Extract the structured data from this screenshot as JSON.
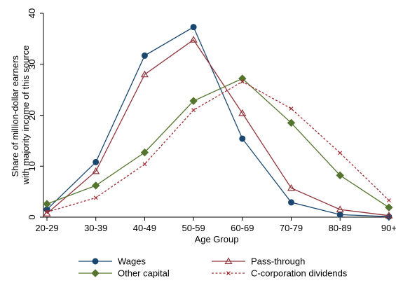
{
  "chart_data": {
    "type": "line",
    "categories": [
      "20-29",
      "30-39",
      "40-49",
      "50-59",
      "60-69",
      "70-79",
      "80-89",
      "90+"
    ],
    "xlabel": "Age Group",
    "ylabel_lines": [
      "Share of million-dollar earners",
      "with majority income of this source"
    ],
    "ylim": [
      0,
      40
    ],
    "yticks": [
      0,
      10,
      20,
      30,
      40
    ],
    "grid": false,
    "legend_position": "bottom",
    "series": [
      {
        "name": "Wages",
        "values": [
          1.5,
          10.8,
          31.7,
          37.3,
          15.4,
          2.9,
          0.5,
          0.1
        ],
        "color": "#1a476f",
        "marker": "circle",
        "dash": "solid"
      },
      {
        "name": "Pass-through",
        "values": [
          0.7,
          9.0,
          28.0,
          34.8,
          20.4,
          5.7,
          1.5,
          0.3
        ],
        "color": "#90353b",
        "marker": "triangle",
        "dash": "solid"
      },
      {
        "name": "Other capital",
        "values": [
          2.6,
          6.2,
          12.7,
          22.8,
          27.2,
          18.5,
          8.2,
          1.9
        ],
        "color": "#55752f",
        "marker": "diamond",
        "dash": "solid"
      },
      {
        "name": "C-corporation dividends",
        "values": [
          1.0,
          3.8,
          10.4,
          21.0,
          26.6,
          21.3,
          12.6,
          3.3
        ],
        "color": "#9f2a2f",
        "marker": "x",
        "dash": "dashed"
      }
    ]
  }
}
